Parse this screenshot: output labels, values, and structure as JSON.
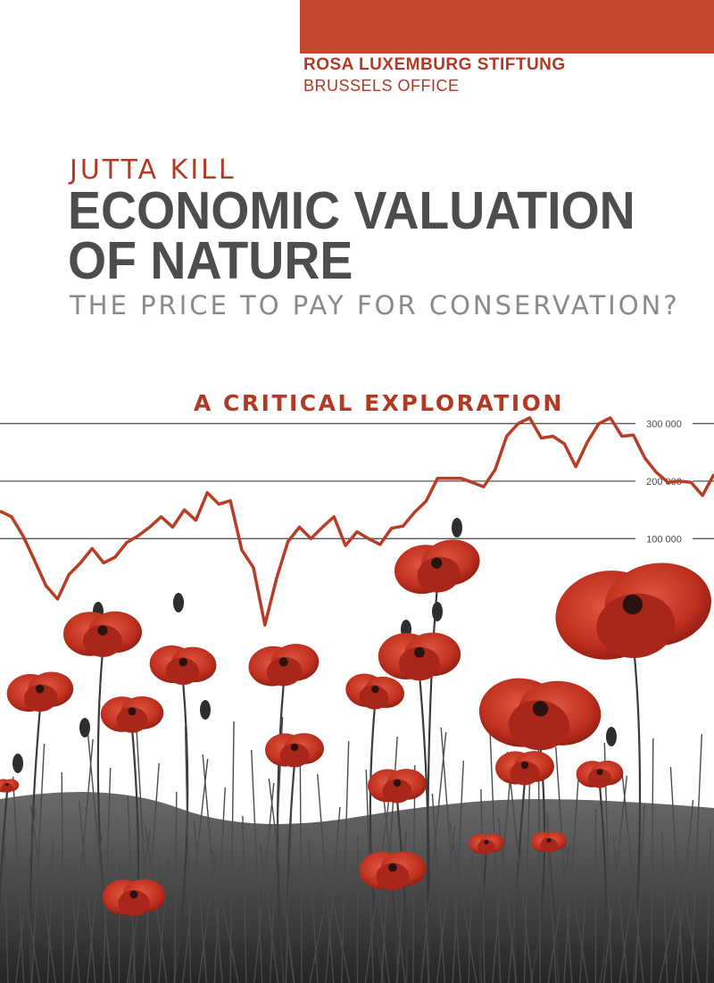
{
  "publisher": {
    "name": "ROSA LUXEMBURG STIFTUNG",
    "office": "BRUSSELS OFFICE"
  },
  "book": {
    "author": "JUTTA KILL",
    "title_line1": "ECONOMIC VALUATION",
    "title_line2": "OF NATURE",
    "subtitle": "THE PRICE TO PAY FOR CONSERVATION?",
    "tagline": "A CRITICAL EXPLORATION"
  },
  "colors": {
    "accent": "#c4472f",
    "text_red": "#b23a24",
    "title_grey": "#4d4d4d",
    "subtitle_grey": "#8a8a8a"
  },
  "chart_data": {
    "type": "line",
    "ticks": [
      {
        "value": 300000,
        "label": "300 000"
      },
      {
        "value": 200000,
        "label": "200 000"
      },
      {
        "value": 100000,
        "label": "100 000"
      }
    ],
    "ylim": [
      -50000,
      400000
    ],
    "grid": true,
    "series": [
      {
        "values": [
          148000,
          138000,
          105000,
          62000,
          18000,
          -5000,
          38000,
          58000,
          83000,
          58000,
          68000,
          93000,
          105000,
          120000,
          138000,
          120000,
          150000,
          132000,
          180000,
          160000,
          166000,
          80000,
          50000,
          -50000,
          30000,
          95000,
          120000,
          100000,
          120000,
          138000,
          88000,
          112000,
          100000,
          90000,
          118000,
          122000,
          146000,
          165000,
          205000,
          205000,
          205000,
          198000,
          190000,
          220000,
          278000,
          300000,
          310000,
          275000,
          278000,
          265000,
          225000,
          268000,
          300000,
          310000,
          278000,
          280000,
          240000,
          215000,
          198000,
          200000,
          198000,
          175000,
          212000
        ]
      }
    ]
  }
}
